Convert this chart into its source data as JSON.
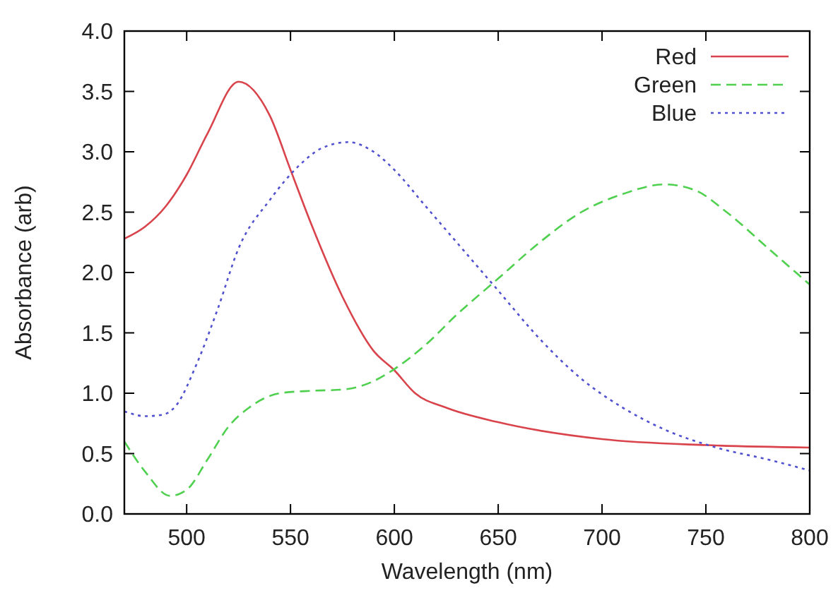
{
  "chart_data": {
    "type": "line",
    "xlabel": "Wavelength (nm)",
    "ylabel": "Absorbance (arb)",
    "xlim": [
      470,
      800
    ],
    "ylim": [
      0,
      4
    ],
    "xticks": [
      500,
      550,
      600,
      650,
      700,
      750,
      800
    ],
    "yticks": [
      {
        "value": 0,
        "label": "0.0"
      },
      {
        "value": 0.5,
        "label": "0.5"
      },
      {
        "value": 1,
        "label": "1.0"
      },
      {
        "value": 1.5,
        "label": "1.5"
      },
      {
        "value": 2,
        "label": "2.0"
      },
      {
        "value": 2.5,
        "label": "2.5"
      },
      {
        "value": 3,
        "label": "3.0"
      },
      {
        "value": 3.5,
        "label": "3.5"
      },
      {
        "value": 4,
        "label": "4.0"
      }
    ],
    "grid": false,
    "legend": "top right",
    "marker": "none",
    "series": [
      {
        "name": "Red",
        "color": "#d9434b",
        "line_style": "solid",
        "x": [
          470,
          480,
          490,
          500,
          510,
          525,
          540,
          550,
          560,
          575,
          590,
          600,
          610,
          625,
          650,
          700,
          750,
          800
        ],
        "values": [
          2.28,
          2.38,
          2.55,
          2.81,
          3.15,
          3.58,
          3.3,
          2.85,
          2.4,
          1.8,
          1.35,
          1.19,
          1.0,
          0.88,
          0.76,
          0.62,
          0.57,
          0.55
        ]
      },
      {
        "name": "Green",
        "color": "#4fd04f",
        "line_style": "dashed",
        "x": [
          470,
          480,
          492,
          500,
          510,
          520,
          530,
          545,
          560,
          575,
          590,
          600,
          615,
          630,
          650,
          670,
          690,
          710,
          730,
          745,
          760,
          780,
          800
        ],
        "values": [
          0.6,
          0.35,
          0.15,
          0.2,
          0.45,
          0.72,
          0.88,
          1.0,
          1.02,
          1.03,
          1.1,
          1.2,
          1.4,
          1.65,
          1.95,
          2.25,
          2.5,
          2.65,
          2.73,
          2.68,
          2.5,
          2.2,
          1.9
        ]
      },
      {
        "name": "Blue",
        "color": "#5050d0",
        "line_style": "dotted",
        "x": [
          470,
          480,
          488,
          495,
          505,
          515,
          525,
          540,
          555,
          565,
          578,
          590,
          600,
          615,
          630,
          650,
          670,
          690,
          710,
          730,
          755,
          780,
          800
        ],
        "values": [
          0.85,
          0.81,
          0.82,
          0.9,
          1.25,
          1.7,
          2.2,
          2.6,
          2.9,
          3.03,
          3.08,
          3.0,
          2.85,
          2.55,
          2.25,
          1.85,
          1.45,
          1.12,
          0.88,
          0.7,
          0.55,
          0.45,
          0.36
        ]
      }
    ]
  }
}
